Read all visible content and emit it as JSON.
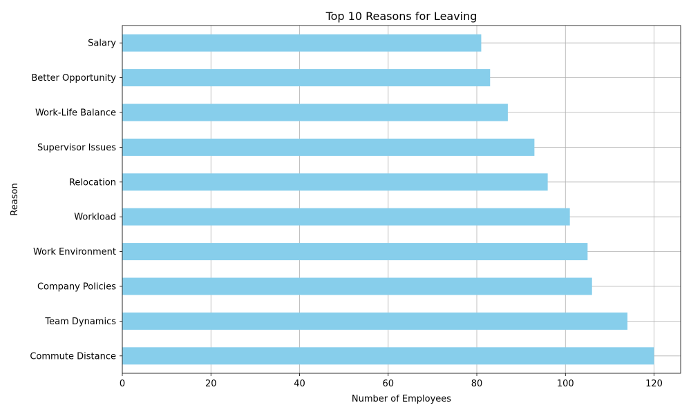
{
  "chart_data": {
    "type": "bar",
    "orientation": "horizontal",
    "title": "Top 10 Reasons for Leaving",
    "xlabel": "Number of Employees",
    "ylabel": "Reason",
    "categories": [
      "Commute Distance",
      "Team Dynamics",
      "Company Policies",
      "Work Environment",
      "Workload",
      "Relocation",
      "Supervisor Issues",
      "Work-Life Balance",
      "Better Opportunity",
      "Salary"
    ],
    "values": [
      120,
      114,
      106,
      105,
      101,
      96,
      93,
      87,
      83,
      81
    ],
    "xlim": [
      0,
      126
    ],
    "xticks": [
      0,
      20,
      40,
      60,
      80,
      100,
      120
    ],
    "grid": true,
    "bar_color": "#87ceeb"
  }
}
